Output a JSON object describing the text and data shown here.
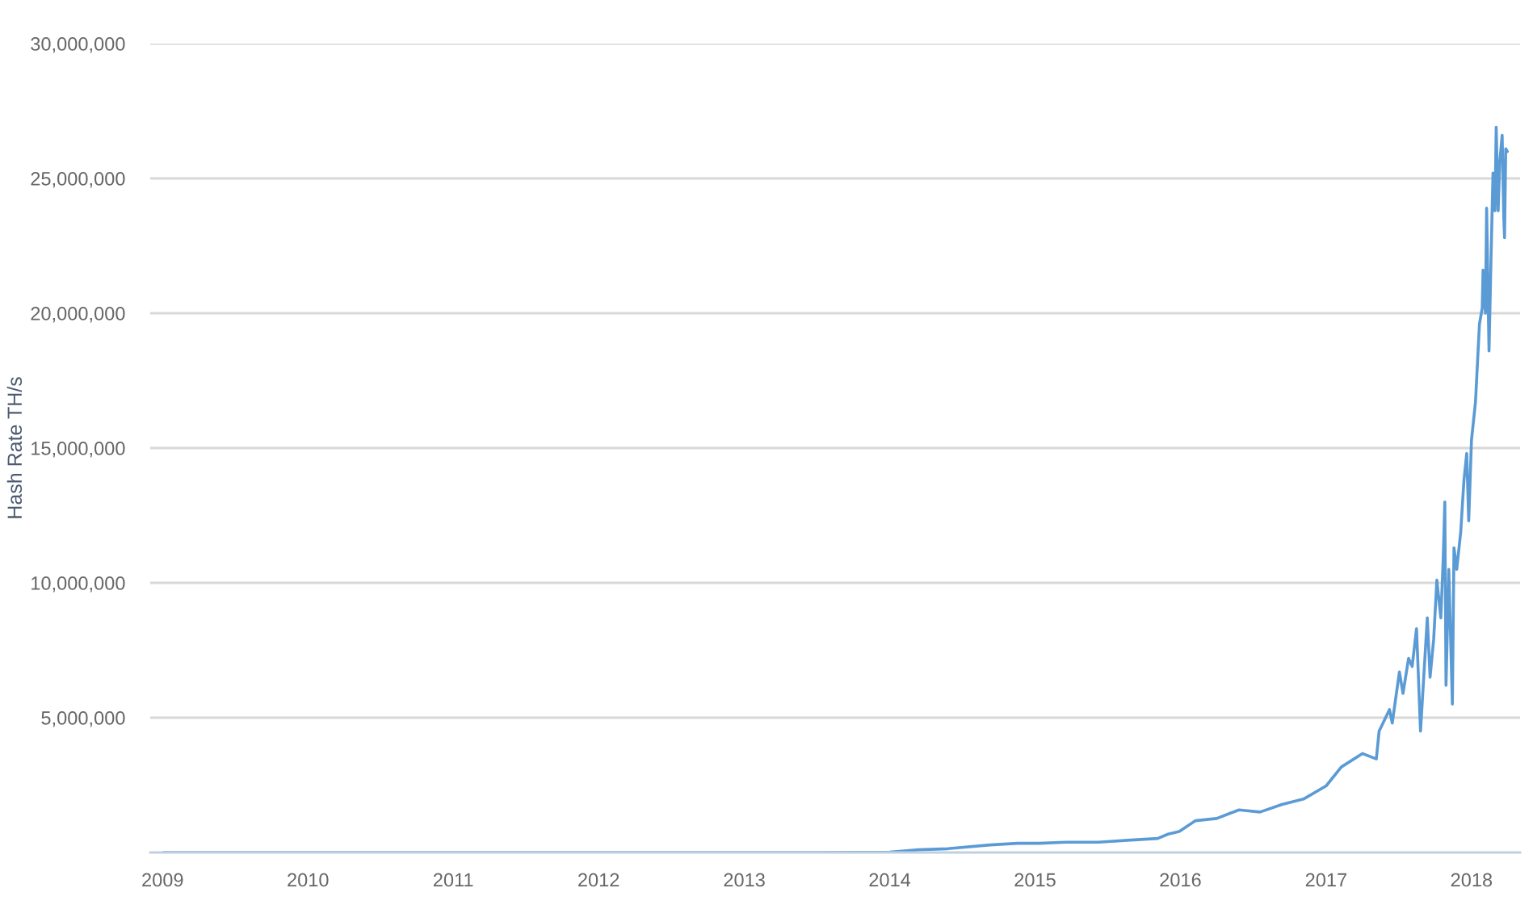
{
  "chart_data": {
    "type": "line",
    "ylabel": "Hash Rate TH/s",
    "x": [
      "2009-01-03",
      "2010-01-01",
      "2011-01-01",
      "2012-01-01",
      "2013-01-01",
      "2013-07-01",
      "2014-01-01",
      "2014-03-15",
      "2014-05-27",
      "2014-09-10",
      "2014-11-18",
      "2015-01-11",
      "2015-03-20",
      "2015-06-09",
      "2015-08-29",
      "2015-11-05",
      "2015-12-01",
      "2015-12-29",
      "2016-02-08",
      "2016-04-01",
      "2016-05-27",
      "2016-07-19",
      "2016-09-12",
      "2016-11-05",
      "2017-01-01",
      "2017-02-08",
      "2017-04-02",
      "2017-05-07",
      "2017-05-14",
      "2017-06-09",
      "2017-06-16",
      "2017-07-04",
      "2017-07-13",
      "2017-07-27",
      "2017-08-05",
      "2017-08-16",
      "2017-08-26",
      "2017-09-12",
      "2017-09-19",
      "2017-09-28",
      "2017-10-06",
      "2017-10-16",
      "2017-10-22",
      "2017-10-26",
      "2017-10-29",
      "2017-11-05",
      "2017-11-14",
      "2017-11-18",
      "2017-11-25",
      "2017-12-05",
      "2017-12-13",
      "2017-12-20",
      "2017-12-25",
      "2018-01-01",
      "2018-01-11",
      "2018-01-21",
      "2018-01-28",
      "2018-01-30",
      "2018-02-05",
      "2018-02-08",
      "2018-02-14",
      "2018-02-19",
      "2018-02-24",
      "2018-03-01",
      "2018-03-04",
      "2018-03-09",
      "2018-03-13",
      "2018-03-19",
      "2018-03-23",
      "2018-03-25",
      "2018-03-28",
      "2018-04-01"
    ],
    "series": [
      {
        "color": "#5b9bd5",
        "values": [
          0,
          0,
          0,
          0,
          0,
          0,
          10000,
          100000,
          140000,
          280000,
          340000,
          340000,
          380000,
          380000,
          460000,
          520000,
          680000,
          780000,
          1180000,
          1260000,
          1580000,
          1500000,
          1780000,
          1980000,
          2470000,
          3170000,
          3670000,
          3470000,
          4500000,
          5300000,
          4800000,
          6700000,
          5900000,
          7200000,
          6900000,
          8300000,
          4500000,
          8700000,
          6500000,
          7900000,
          10100000,
          8700000,
          10900000,
          13000000,
          6200000,
          10500000,
          5500000,
          11300000,
          10500000,
          11900000,
          13800000,
          14800000,
          12300000,
          15300000,
          16700000,
          19600000,
          20200000,
          21600000,
          20000000,
          23900000,
          18600000,
          22000000,
          25200000,
          23800000,
          26900000,
          23800000,
          25600000,
          26600000,
          23600000,
          22800000,
          26100000,
          26000000
        ]
      }
    ],
    "xlim": [
      "2008-12-01",
      "2018-05-03"
    ],
    "xticks": [
      {
        "value": "2009-01-01",
        "label": "2009"
      },
      {
        "value": "2010-01-01",
        "label": "2010"
      },
      {
        "value": "2011-01-01",
        "label": "2011"
      },
      {
        "value": "2012-01-01",
        "label": "2012"
      },
      {
        "value": "2013-01-01",
        "label": "2013"
      },
      {
        "value": "2014-01-01",
        "label": "2014"
      },
      {
        "value": "2015-01-01",
        "label": "2015"
      },
      {
        "value": "2016-01-01",
        "label": "2016"
      },
      {
        "value": "2017-01-01",
        "label": "2017"
      },
      {
        "value": "2018-01-01",
        "label": "2018"
      }
    ],
    "ylim": [
      0,
      30000000
    ],
    "yticks": [
      {
        "value": 5000000,
        "label": "5,000,000"
      },
      {
        "value": 10000000,
        "label": "10,000,000"
      },
      {
        "value": 15000000,
        "label": "15,000,000"
      },
      {
        "value": 20000000,
        "label": "20,000,000"
      },
      {
        "value": 25000000,
        "label": "25,000,000"
      },
      {
        "value": 30000000,
        "label": "30,000,000"
      }
    ],
    "grid": "y"
  }
}
